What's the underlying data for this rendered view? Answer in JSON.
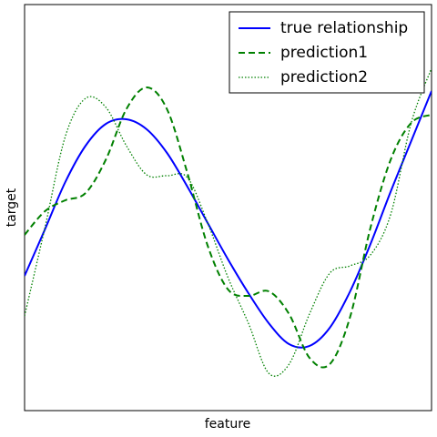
{
  "chart_data": {
    "type": "line",
    "x_label": "feature",
    "y_label": "target",
    "x": [
      0,
      1,
      2,
      3,
      4,
      5,
      6,
      7,
      8,
      9,
      10,
      11,
      12,
      13,
      14,
      15,
      16,
      17,
      18,
      19,
      20
    ],
    "xlim": [
      0,
      20
    ],
    "ylim": [
      0,
      446
    ],
    "legend": "upper right",
    "series": [
      {
        "name": "true relationship",
        "color": "#0000ff",
        "style": "solid",
        "values": [
          148,
          199,
          251,
          291,
          315,
          320,
          309,
          283,
          246,
          206,
          166,
          129,
          96,
          73,
          71,
          91,
          131,
          183,
          241,
          296,
          351
        ]
      },
      {
        "name": "prediction1",
        "color": "#008000",
        "style": "dashed",
        "values": [
          193,
          219,
          231,
          239,
          276,
          331,
          355,
          331,
          261,
          181,
          133,
          126,
          131,
          106,
          58,
          51,
          103,
          201,
          276,
          316,
          325
        ]
      },
      {
        "name": "prediction2",
        "color": "#008000",
        "style": "dotted",
        "values": [
          104,
          201,
          301,
          343,
          333,
          291,
          259,
          258,
          256,
          206,
          146,
          96,
          41,
          51,
          106,
          151,
          159,
          171,
          216,
          316,
          376
        ]
      }
    ]
  }
}
